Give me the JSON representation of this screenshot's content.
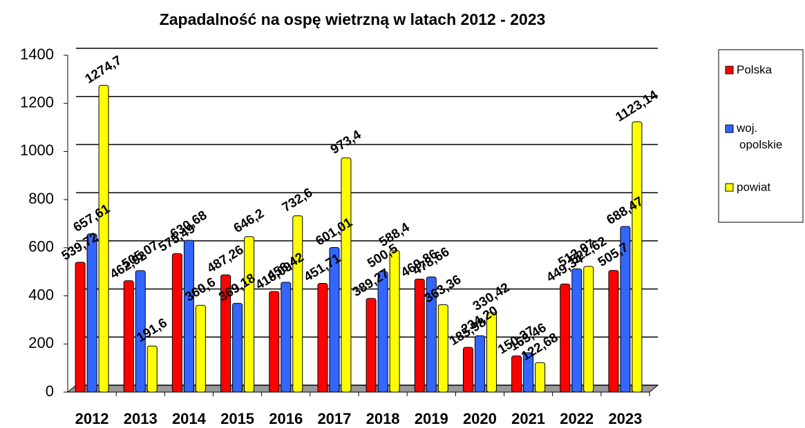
{
  "chart_data": {
    "type": "bar",
    "title": "Zapadalność na ospę wietrzną w latach 2012 - 2023",
    "categories": [
      "2012",
      "2013",
      "2014",
      "2015",
      "2016",
      "2017",
      "2018",
      "2019",
      "2020",
      "2021",
      "2022",
      "2023"
    ],
    "series": [
      {
        "name": "Polska",
        "color": "#ff0000",
        "values": [
          539.72,
          462.92,
          575.49,
          487.26,
          418.09,
          451.71,
          389.27,
          469.86,
          185.98,
          150.37,
          449.34,
          505.7
        ],
        "value_labels": [
          "539,72",
          "462,92",
          "575,49",
          "487,26",
          "418,09",
          "451,71",
          "389,27",
          "469,86",
          "185,98",
          "150,37",
          "449,34",
          "505,7"
        ]
      },
      {
        "name": "woj. opolskie",
        "color": "#3366ff",
        "values": [
          657.61,
          505.07,
          630.68,
          369.18,
          456.42,
          601.01,
          500.5,
          478.66,
          234.2,
          163.46,
          512.07,
          688.47
        ],
        "value_labels": [
          "657,61",
          "505,07",
          "630,68",
          "369,18",
          "456,42",
          "601,01",
          "500,5",
          "478,66",
          "234,20",
          "163,46",
          "512,07",
          "688,47"
        ]
      },
      {
        "name": "powiat",
        "color": "#ffff00",
        "values": [
          1274.7,
          191.6,
          360.6,
          646.2,
          732.6,
          973.4,
          588.4,
          363.36,
          330.42,
          122.68,
          522.62,
          1123.14
        ],
        "value_labels": [
          "1274,7",
          "191,6",
          "360,6",
          "646,2",
          "732,6",
          "973,4",
          "588,4",
          "363,36",
          "330,42",
          "122,68",
          "522,62",
          "1123,14"
        ]
      }
    ],
    "ylim": [
      0,
      1400
    ],
    "yticks": [
      0,
      200,
      400,
      600,
      800,
      1000,
      1200,
      1400
    ],
    "grid": true,
    "legend": "right"
  }
}
